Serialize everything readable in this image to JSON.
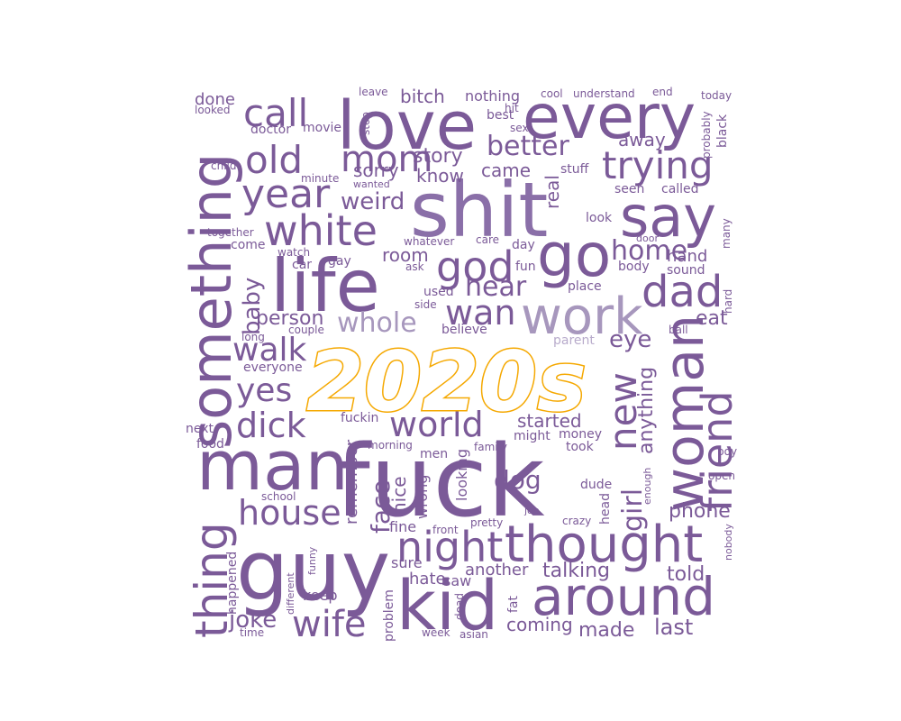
{
  "title": "2020s",
  "accent_color": "#f5a800",
  "word_color": "#7b5a98",
  "words": {
    "fuck": "fuck",
    "shit": "shit",
    "guy": "guy",
    "man": "man",
    "love": "love",
    "every": "every",
    "life": "life",
    "something": "something",
    "woman": "woman",
    "kid": "kid",
    "around": "around",
    "thought": "thought",
    "go": "go",
    "say": "say",
    "work": "work",
    "thing": "thing",
    "friend": "friend",
    "white": "white",
    "year": "year",
    "god": "god",
    "old": "old",
    "dad": "dad",
    "mom": "mom",
    "trying": "trying",
    "night": "night",
    "house": "house",
    "wife": "wife",
    "new": "new",
    "world": "world",
    "call": "call",
    "dick": "dick",
    "wan": "wan",
    "whole": "whole",
    "walk": "walk",
    "yes": "yes",
    "home": "home",
    "better": "better",
    "hear": "hear",
    "joke": "joke",
    "girl": "girl",
    "baby": "baby",
    "story": "story",
    "face": "face",
    "dog": "dog",
    "weird": "weird",
    "person": "person",
    "anything": "anything",
    "thought2": "",
    "eye": "eye",
    "eat": "eat",
    "phone": "phone",
    "talking": "talking",
    "told": "told",
    "last": "last",
    "made": "made",
    "coming": "coming",
    "another": "another",
    "keep": "keep",
    "hate": "hate",
    "saw": "saw",
    "sure": "sure",
    "fine": "fine",
    "remember": "remember",
    "started": "started",
    "nice": "nice",
    "looking": "looking",
    "wrong": "wrong",
    "room": "room",
    "sorry": "sorry",
    "know": "know",
    "came": "came",
    "real": "real",
    "away": "away",
    "bitch": "bitch",
    "nothing": "nothing",
    "best": "best",
    "sex": "sex",
    "stop": "stop",
    "movie": "movie",
    "doctor": "doctor",
    "done": "done",
    "looked": "looked",
    "child": "child",
    "leave": "leave",
    "hit": "hit",
    "cool": "cool",
    "understand": "understand",
    "end": "end",
    "today": "today",
    "probably": "probably",
    "black": "black",
    "stuff": "stuff",
    "called": "called",
    "seen": "seen",
    "look": "look",
    "many": "many",
    "hand": "hand",
    "door": "door",
    "body": "body",
    "sound": "sound",
    "hard": "hard",
    "ball": "ball",
    "place": "place",
    "fun": "fun",
    "day": "day",
    "care": "care",
    "whatever": "whatever",
    "ask": "ask",
    "used": "used",
    "side": "side",
    "believe": "believe",
    "parent": "parent",
    "couple": "couple",
    "long": "long",
    "everyone": "everyone",
    "together": "together",
    "come": "come",
    "watch": "watch",
    "car": "car",
    "gay": "gay",
    "minute": "minute",
    "wanted": "wanted",
    "next": "next",
    "food": "food",
    "fuckin": "fuckin",
    "might": "might",
    "money": "money",
    "took": "took",
    "family": "family",
    "morning": "morning",
    "men": "men",
    "dude": "dude",
    "head": "head",
    "enough": "enough",
    "crazy": "crazy",
    "job": "job",
    "pretty": "pretty",
    "front": "front",
    "school": "school",
    "boy": "boy",
    "open": "open",
    "nobody": "nobody",
    "funny": "funny",
    "different": "different",
    "happened": "happened",
    "time": "time",
    "problem": "problem",
    "dead": "dead",
    "week": "week",
    "asian": "asian",
    "fat": "fat"
  }
}
